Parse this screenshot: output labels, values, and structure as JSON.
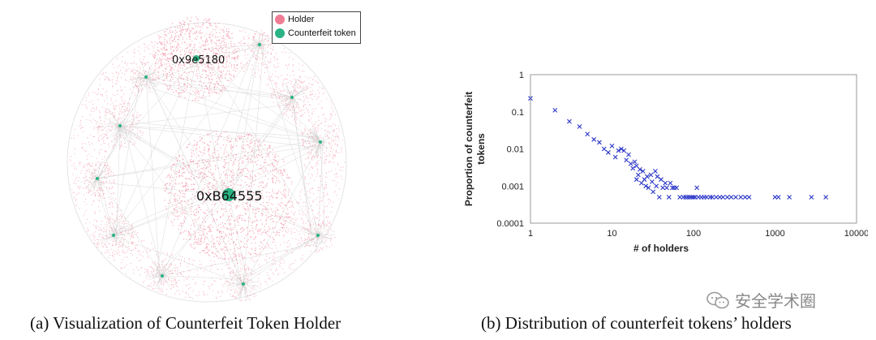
{
  "left_figure": {
    "legend": [
      {
        "label": "Holder",
        "color": "#f07c94"
      },
      {
        "label": "Counterfeit token",
        "color": "#2bb383"
      }
    ],
    "node_labels": {
      "small": "0x9e5180",
      "big": "0xB64555"
    },
    "caption": "(a)  Visualization of Counterfeit Token Holder"
  },
  "right_figure": {
    "caption": "(b)  Distribution of counterfeit tokens’ holders"
  },
  "watermark": {
    "text": "安全学术圈"
  },
  "chart_data": {
    "type": "scatter",
    "xlabel": "# of holders",
    "ylabel": "Proportion of counterfeit tokens",
    "x_scale": "log",
    "y_scale": "log",
    "xlim": [
      1,
      10000
    ],
    "ylim": [
      0.0001,
      1
    ],
    "x_ticks": [
      "1",
      "10",
      "100",
      "1000",
      "10000"
    ],
    "y_ticks": [
      "1",
      "0.1",
      "0.01",
      "0.001",
      "0.0001"
    ],
    "marker": "x",
    "marker_color": "#2a36c8",
    "grid": false,
    "points": [
      [
        1,
        0.23
      ],
      [
        2,
        0.11
      ],
      [
        3,
        0.055
      ],
      [
        4,
        0.04
      ],
      [
        5,
        0.025
      ],
      [
        6,
        0.018
      ],
      [
        7,
        0.015
      ],
      [
        8,
        0.01
      ],
      [
        9,
        0.008
      ],
      [
        10,
        0.012
      ],
      [
        11,
        0.006
      ],
      [
        12,
        0.009
      ],
      [
        13,
        0.01
      ],
      [
        14,
        0.009
      ],
      [
        15,
        0.005
      ],
      [
        16,
        0.007
      ],
      [
        17,
        0.004
      ],
      [
        18,
        0.003
      ],
      [
        19,
        0.0045
      ],
      [
        20,
        0.0035
      ],
      [
        20,
        0.0015
      ],
      [
        21,
        0.002
      ],
      [
        22,
        0.0028
      ],
      [
        23,
        0.0012
      ],
      [
        24,
        0.0025
      ],
      [
        25,
        0.0015
      ],
      [
        26,
        0.001
      ],
      [
        27,
        0.0018
      ],
      [
        28,
        0.0009
      ],
      [
        30,
        0.002
      ],
      [
        31,
        0.0013
      ],
      [
        32,
        0.0007
      ],
      [
        34,
        0.0025
      ],
      [
        35,
        0.001
      ],
      [
        36,
        0.0018
      ],
      [
        38,
        0.0005
      ],
      [
        40,
        0.0015
      ],
      [
        42,
        0.0009
      ],
      [
        45,
        0.0012
      ],
      [
        47,
        0.0009
      ],
      [
        50,
        0.0005
      ],
      [
        52,
        0.0012
      ],
      [
        55,
        0.0009
      ],
      [
        58,
        0.0009
      ],
      [
        62,
        0.0009
      ],
      [
        68,
        0.0005
      ],
      [
        75,
        0.0005
      ],
      [
        80,
        0.0005
      ],
      [
        85,
        0.0005
      ],
      [
        90,
        0.0005
      ],
      [
        95,
        0.0005
      ],
      [
        100,
        0.0005
      ],
      [
        105,
        0.0005
      ],
      [
        110,
        0.0009
      ],
      [
        115,
        0.0005
      ],
      [
        125,
        0.0005
      ],
      [
        135,
        0.0005
      ],
      [
        145,
        0.0005
      ],
      [
        160,
        0.0005
      ],
      [
        170,
        0.0005
      ],
      [
        190,
        0.0005
      ],
      [
        210,
        0.0005
      ],
      [
        230,
        0.0005
      ],
      [
        260,
        0.0005
      ],
      [
        290,
        0.0005
      ],
      [
        330,
        0.0005
      ],
      [
        380,
        0.0005
      ],
      [
        430,
        0.0005
      ],
      [
        480,
        0.0005
      ],
      [
        1000,
        0.0005
      ],
      [
        1100,
        0.0005
      ],
      [
        1500,
        0.0005
      ],
      [
        2800,
        0.0005
      ],
      [
        4200,
        0.0005
      ]
    ]
  }
}
